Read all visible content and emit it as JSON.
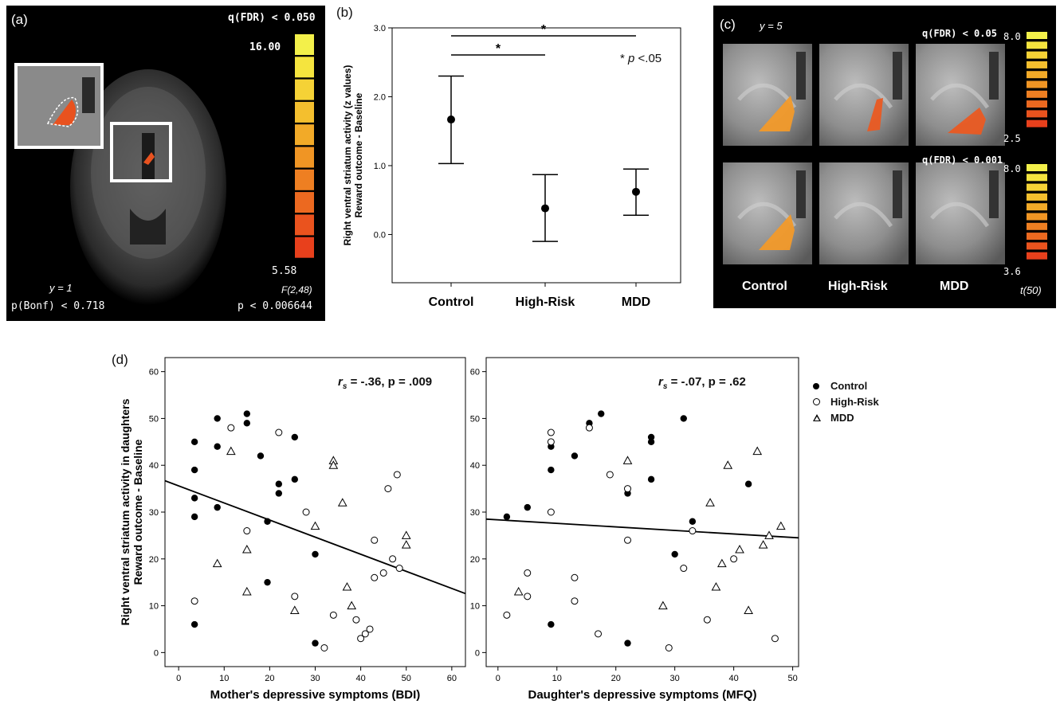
{
  "panel_a": {
    "label": "(a)",
    "threshold": "q(FDR) < 0.050",
    "scale_max": "16.00",
    "scale_min": "5.58",
    "stat": "F(2,48)",
    "slice": "y = 1",
    "pbonf": "p(Bonf) < 0.718",
    "pval": "p < 0.006644",
    "colorbar": [
      "#f3f04a",
      "#f5e43e",
      "#f5d236",
      "#f4bf2e",
      "#f2aa28",
      "#f09524",
      "#ee7f22",
      "#ec6920",
      "#ea531e",
      "#e8401c"
    ]
  },
  "panel_b": {
    "label": "(b)",
    "ylabel_line1": "Right ventral striatum activity (z values)",
    "ylabel_line2": "Reward outcome - Baseline",
    "sig_note_star": "* ",
    "sig_note_p": "p",
    "sig_note_rest": " <.05",
    "star": "*"
  },
  "panel_c": {
    "label": "(c)",
    "slice": "y = 5",
    "threshold1": "q(FDR) < 0.05",
    "threshold2": "q(FDR) < 0.001",
    "cb1_max": "8.0",
    "cb1_min": "2.5",
    "cb2_max": "8.0",
    "cb2_min": "3.6",
    "stat": "t(50)",
    "groups": [
      "Control",
      "High-Risk",
      "MDD"
    ]
  },
  "panel_d": {
    "label": "(d)",
    "ylabel_line1": "Right ventral striatum activity in daughters",
    "ylabel_line2": "Reward outcome - Baseline",
    "left_stat_r": "r",
    "left_stat_sub": "s",
    "left_stat_rest": " = -.36, p = .009",
    "right_stat_r": "r",
    "right_stat_sub": "s",
    "right_stat_rest": " = -.07, p = .62",
    "legend": [
      "Control",
      "High-Risk",
      "MDD"
    ]
  },
  "chart_data": [
    {
      "type": "scatter",
      "panel": "b",
      "categories": [
        "Control",
        "High-Risk",
        "MDD"
      ],
      "means": [
        1.67,
        0.38,
        0.62
      ],
      "error_low": [
        1.03,
        -0.1,
        0.28
      ],
      "error_high": [
        2.3,
        0.87,
        0.95
      ],
      "ylim": [
        -0.7,
        3.0
      ],
      "yticks": [
        "0.0",
        "1.0",
        "2.0",
        "3.0"
      ]
    },
    {
      "type": "scatter",
      "panel": "d-left",
      "xlabel": "Mother's depressive symptoms (BDI)",
      "xlim": [
        -3,
        63
      ],
      "ylim": [
        -3,
        63
      ],
      "xticks": [
        "0",
        "10",
        "20",
        "30",
        "40",
        "50",
        "60"
      ],
      "yticks": [
        "0",
        "10",
        "20",
        "30",
        "40",
        "50",
        "60"
      ],
      "regression": [
        [
          -3,
          36.7
        ],
        [
          63,
          12.6
        ]
      ],
      "series": [
        {
          "name": "Control",
          "points": [
            [
              3.5,
              45
            ],
            [
              3.5,
              39
            ],
            [
              3.5,
              33
            ],
            [
              3.5,
              29
            ],
            [
              3.5,
              6
            ],
            [
              8.5,
              50
            ],
            [
              8.5,
              44
            ],
            [
              8.5,
              31
            ],
            [
              15,
              51
            ],
            [
              15,
              49
            ],
            [
              18,
              42
            ],
            [
              22,
              36
            ],
            [
              22,
              34
            ],
            [
              25.5,
              46
            ],
            [
              25.5,
              37
            ],
            [
              19.5,
              28
            ],
            [
              19.5,
              15
            ],
            [
              30,
              21
            ],
            [
              30,
              2
            ]
          ]
        },
        {
          "name": "High-Risk",
          "points": [
            [
              3.5,
              11
            ],
            [
              11.5,
              48
            ],
            [
              15,
              26
            ],
            [
              22,
              47
            ],
            [
              25.5,
              12
            ],
            [
              28,
              30
            ],
            [
              34,
              8
            ],
            [
              41,
              4
            ],
            [
              42,
              5
            ],
            [
              39,
              7
            ],
            [
              40,
              3
            ],
            [
              43,
              16
            ],
            [
              43,
              24
            ],
            [
              45,
              17
            ],
            [
              46,
              35
            ],
            [
              47,
              20
            ],
            [
              48,
              38
            ],
            [
              48.5,
              18
            ],
            [
              32,
              1
            ]
          ]
        },
        {
          "name": "MDD",
          "points": [
            [
              11.5,
              43
            ],
            [
              8.5,
              19
            ],
            [
              15,
              22
            ],
            [
              15,
              13
            ],
            [
              25.5,
              9
            ],
            [
              34,
              41
            ],
            [
              34,
              40
            ],
            [
              30,
              27
            ],
            [
              36,
              32
            ],
            [
              37,
              14
            ],
            [
              38,
              10
            ],
            [
              50,
              25
            ],
            [
              50,
              23
            ]
          ]
        }
      ]
    },
    {
      "type": "scatter",
      "panel": "d-right",
      "xlabel": "Daughter's depressive symptoms (MFQ)",
      "xlim": [
        -2,
        51
      ],
      "ylim": [
        -3,
        63
      ],
      "xticks": [
        "0",
        "10",
        "20",
        "30",
        "40",
        "50"
      ],
      "yticks": [
        "0",
        "10",
        "20",
        "30",
        "40",
        "50",
        "60"
      ],
      "regression": [
        [
          -2,
          28.5
        ],
        [
          51,
          24.5
        ]
      ],
      "series": [
        {
          "name": "Control",
          "points": [
            [
              1.5,
              29
            ],
            [
              5,
              31
            ],
            [
              9,
              44
            ],
            [
              9,
              39
            ],
            [
              9,
              6
            ],
            [
              13,
              42
            ],
            [
              15.5,
              49
            ],
            [
              17.5,
              51
            ],
            [
              22,
              34
            ],
            [
              22,
              2
            ],
            [
              26,
              46
            ],
            [
              26,
              45
            ],
            [
              26,
              37
            ],
            [
              31.5,
              50
            ],
            [
              33,
              28
            ],
            [
              30,
              21
            ],
            [
              42.5,
              36
            ]
          ]
        },
        {
          "name": "High-Risk",
          "points": [
            [
              1.5,
              8
            ],
            [
              5,
              17
            ],
            [
              5,
              12
            ],
            [
              9,
              47
            ],
            [
              9,
              45
            ],
            [
              9,
              30
            ],
            [
              13,
              16
            ],
            [
              13,
              11
            ],
            [
              15.5,
              48
            ],
            [
              17,
              4
            ],
            [
              19,
              38
            ],
            [
              22,
              35
            ],
            [
              22,
              24
            ],
            [
              29,
              1
            ],
            [
              31.5,
              18
            ],
            [
              33,
              26
            ],
            [
              35.5,
              7
            ],
            [
              40,
              20
            ],
            [
              47,
              3
            ]
          ]
        },
        {
          "name": "MDD",
          "points": [
            [
              3.5,
              13
            ],
            [
              22,
              41
            ],
            [
              28,
              10
            ],
            [
              36,
              32
            ],
            [
              38,
              19
            ],
            [
              37,
              14
            ],
            [
              39,
              40
            ],
            [
              41,
              22
            ],
            [
              42.5,
              9
            ],
            [
              44,
              43
            ],
            [
              45,
              23
            ],
            [
              46,
              25
            ],
            [
              48,
              27
            ]
          ]
        }
      ]
    }
  ]
}
